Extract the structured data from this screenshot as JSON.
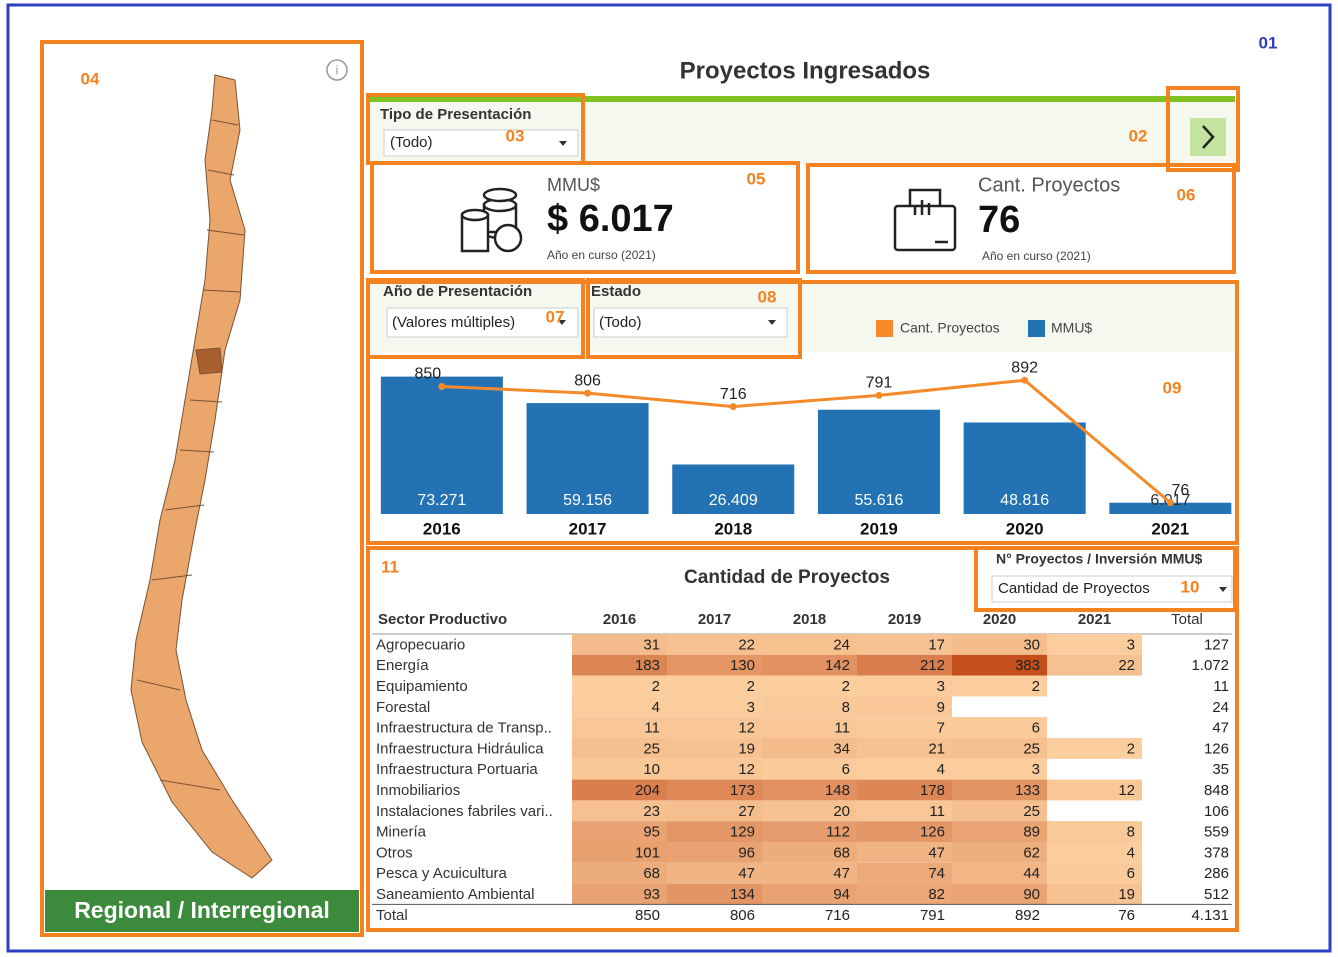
{
  "callouts": [
    "01",
    "02",
    "03",
    "04",
    "05",
    "06",
    "07",
    "08",
    "09",
    "10",
    "11"
  ],
  "header": {
    "title": "Proyectos Ingresados"
  },
  "filters": [
    {
      "label": "Tipo de Presentación",
      "value": "(Todo)"
    },
    {
      "label": "Año de Presentación",
      "value": "(Valores múltiples)"
    },
    {
      "label": "Estado",
      "value": "(Todo)"
    }
  ],
  "kpis": [
    {
      "label": "MMU$",
      "value": "$ 6.017",
      "note": "Año en curso (2021)"
    },
    {
      "label": "Cant. Proyectos",
      "value": 76,
      "note": "Año en curso (2021)"
    }
  ],
  "map": {
    "label": "Regional / Interregional"
  },
  "chart_data": {
    "type": "combo",
    "categories": [
      2016,
      2017,
      2018,
      2019,
      2020,
      2021
    ],
    "series": [
      {
        "name": "Cant. Proyectos",
        "type": "line",
        "axis": "y2",
        "color": "#f58a2a",
        "values": [
          850,
          806,
          716,
          791,
          892,
          76
        ]
      },
      {
        "name": "MMU$",
        "type": "bar",
        "color": "#2272b4",
        "values": [
          73271,
          59156,
          26409,
          55616,
          48816,
          6017
        ],
        "value_labels": [
          "73.271",
          "59.156",
          "26.409",
          "55.616",
          "48.816",
          "6.017"
        ]
      }
    ],
    "ylim": [
      0,
      80000
    ],
    "y2lim": [
      0,
      1000
    ]
  },
  "table": {
    "title": "Cantidad de Proyectos",
    "selector": {
      "label": "N° Proyectos / Inversión MMU$",
      "value": "Cantidad de Proyectos"
    },
    "columns": [
      "Sector Productivo",
      "2016",
      "2017",
      "2018",
      "2019",
      "2020",
      "2021",
      "Total"
    ],
    "rows": [
      [
        "Agropecuario",
        31,
        22,
        24,
        17,
        30,
        3,
        127
      ],
      [
        "Energía",
        183,
        130,
        142,
        212,
        383,
        22,
        "1.072"
      ],
      [
        "Equipamiento",
        2,
        2,
        2,
        3,
        2,
        null,
        11
      ],
      [
        "Forestal",
        4,
        3,
        8,
        9,
        null,
        null,
        24
      ],
      [
        "Infraestructura de Transp..",
        11,
        12,
        11,
        7,
        6,
        null,
        47
      ],
      [
        "Infraestructura Hidráulica",
        25,
        19,
        34,
        21,
        25,
        2,
        126
      ],
      [
        "Infraestructura Portuaria",
        10,
        12,
        6,
        4,
        3,
        null,
        35
      ],
      [
        "Inmobiliarios",
        204,
        173,
        148,
        178,
        133,
        12,
        848
      ],
      [
        "Instalaciones fabriles vari..",
        23,
        27,
        20,
        11,
        25,
        null,
        106
      ],
      [
        "Minería",
        95,
        129,
        112,
        126,
        89,
        8,
        559
      ],
      [
        "Otros",
        101,
        96,
        68,
        47,
        62,
        4,
        378
      ],
      [
        "Pesca y Acuicultura",
        68,
        47,
        47,
        74,
        44,
        6,
        286
      ],
      [
        "Saneamiento Ambiental",
        93,
        134,
        94,
        82,
        90,
        19,
        512
      ],
      [
        "Total",
        850,
        806,
        716,
        791,
        892,
        76,
        "4.131"
      ]
    ]
  }
}
